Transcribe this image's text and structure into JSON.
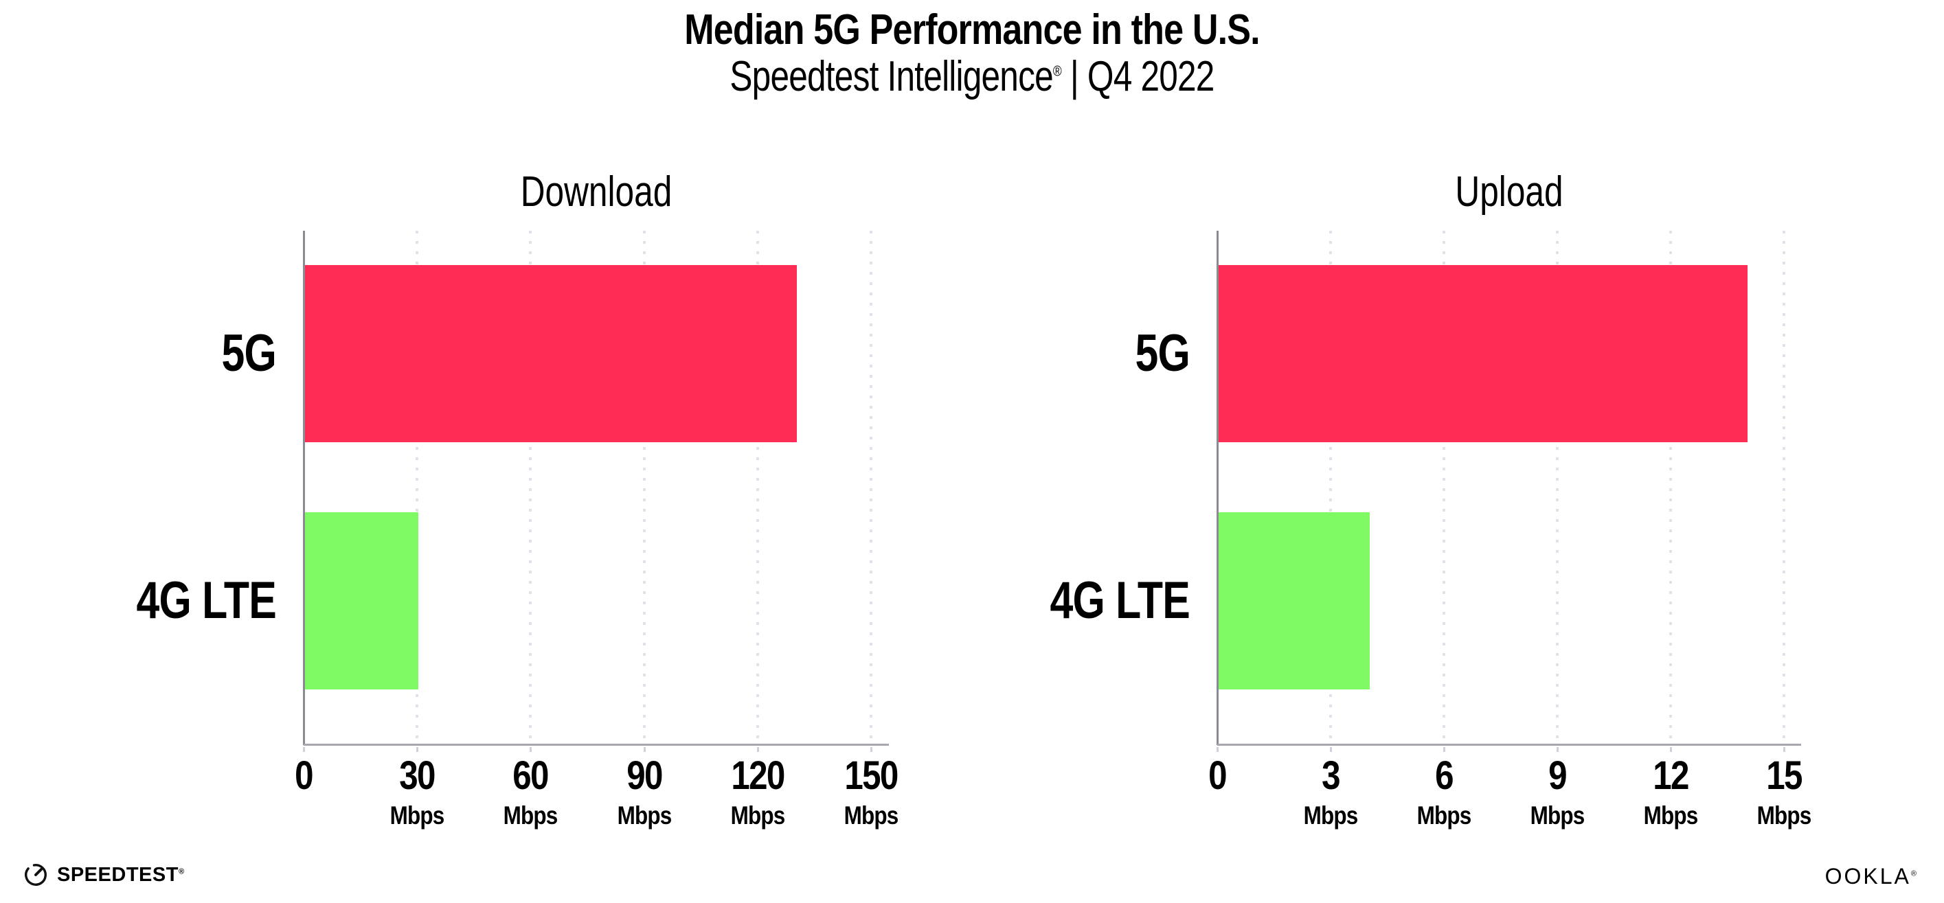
{
  "header": {
    "title": "Median 5G Performance in the U.S.",
    "subtitle": {
      "brand": "Speedtest Intelligence",
      "registered": "®",
      "rest": " | Q4 2022"
    }
  },
  "chart_data": [
    {
      "type": "bar",
      "orientation": "horizontal",
      "title": "Download",
      "categories": [
        "5G",
        "4G LTE"
      ],
      "values": [
        130,
        30
      ],
      "unit": "Mbps",
      "xlabel": "",
      "ylabel": "",
      "xlim": [
        0,
        150
      ],
      "xticks": [
        0,
        30,
        60,
        90,
        120,
        150
      ],
      "bar_colors": [
        "#FF2D55",
        "#7FFA64"
      ],
      "grid": "vertical dotted",
      "legend": "none"
    },
    {
      "type": "bar",
      "orientation": "horizontal",
      "title": "Upload",
      "categories": [
        "5G",
        "4G LTE"
      ],
      "values": [
        14,
        4
      ],
      "unit": "Mbps",
      "xlabel": "",
      "ylabel": "",
      "xlim": [
        0,
        15
      ],
      "xticks": [
        0,
        3,
        6,
        9,
        12,
        15
      ],
      "bar_colors": [
        "#FF2D55",
        "#7FFA64"
      ],
      "grid": "vertical dotted",
      "legend": "none"
    }
  ],
  "footer": {
    "speedtest": {
      "label": "SPEEDTEST",
      "registered": "®",
      "icon": "speedtest-gauge-icon"
    },
    "ookla": {
      "label": "OOKLA",
      "registered": "®"
    }
  },
  "colors": {
    "bar_5g": "#FF2D55",
    "bar_4g_lte": "#7FFA64",
    "gridline": "#E1E1EC",
    "axis_y": "#8B8B93",
    "axis_x": "#A7A7AF",
    "text": "#000000",
    "background": "#FFFFFF"
  }
}
